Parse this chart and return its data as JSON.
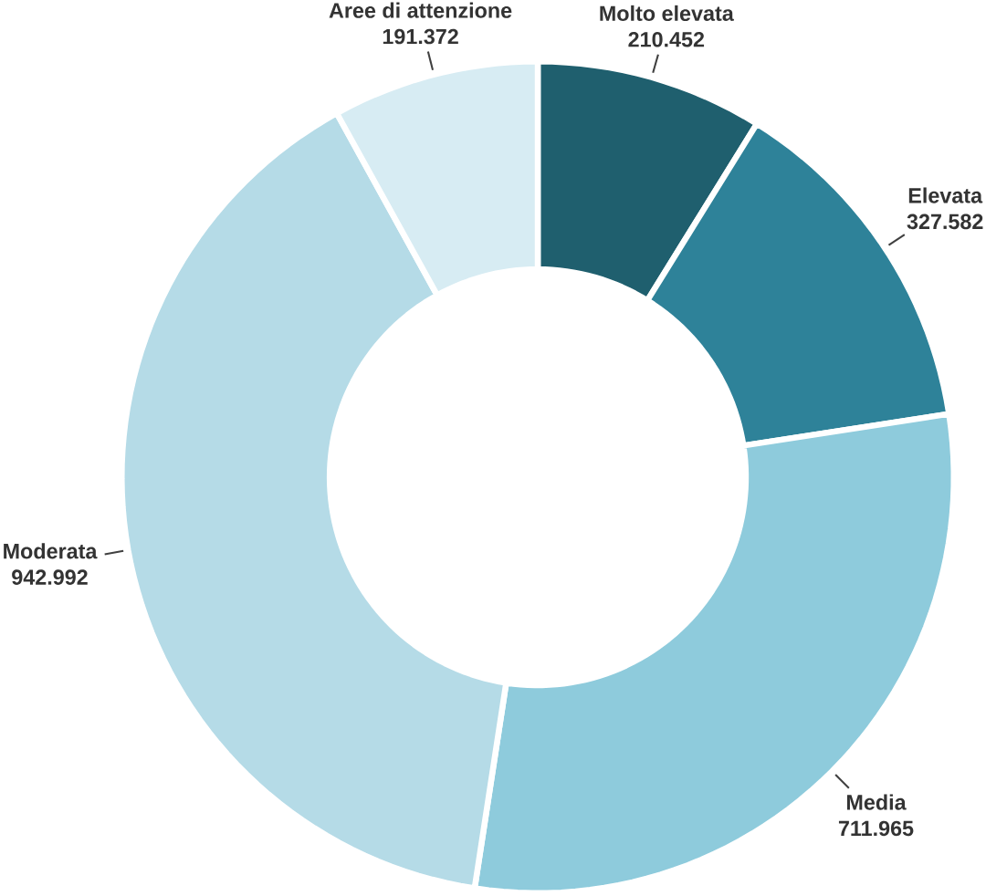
{
  "chart_data": {
    "type": "donut",
    "categories": [
      "Molto elevata",
      "Elevata",
      "Media",
      "Moderata",
      "Aree di attenzione"
    ],
    "values": [
      210452,
      327582,
      711965,
      942992,
      191372
    ],
    "value_labels": [
      "210.452",
      "327.582",
      "711.965",
      "942.992",
      "191.372"
    ],
    "colors": [
      "#1f5f6e",
      "#2e8299",
      "#8ecbdc",
      "#b5dbe7",
      "#d7ecf3"
    ]
  }
}
